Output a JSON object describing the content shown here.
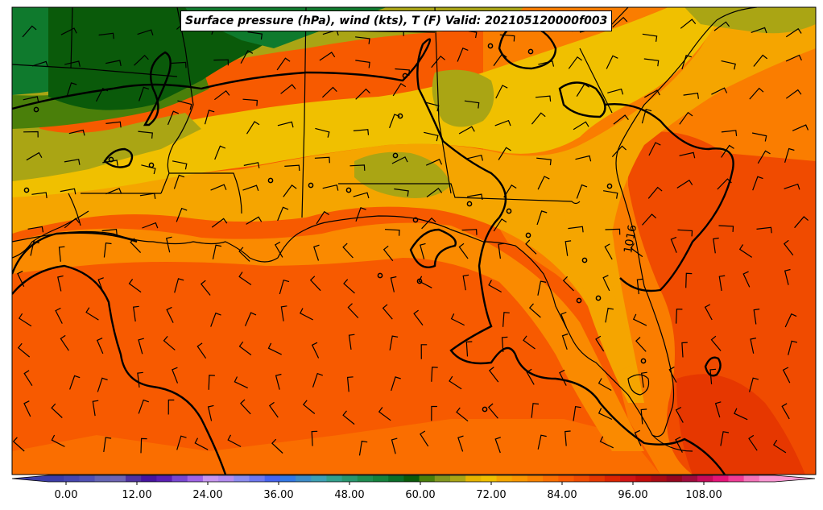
{
  "title": "Surface pressure (hPa), wind (kts), T (F) Valid: 202105120000f003",
  "isobar_label": "1016",
  "colorbar": {
    "tick_labels": [
      "0.00",
      "12.00",
      "24.00",
      "36.00",
      "48.00",
      "60.00",
      "72.00",
      "84.00",
      "96.00",
      "108.00"
    ],
    "tick_values": [
      0,
      12,
      24,
      36,
      48,
      60,
      72,
      84,
      96,
      108
    ],
    "range": [
      -3,
      120
    ],
    "colors": [
      "#3c3ca8",
      "#4646b0",
      "#5050b4",
      "#6464b4",
      "#6e64b4",
      "#5032a0",
      "#4614a0",
      "#5a1eb4",
      "#7846d2",
      "#a064e6",
      "#c896f0",
      "#b48cf0",
      "#8c8cf0",
      "#6e78f0",
      "#4664f0",
      "#3278e6",
      "#3c8cc8",
      "#3ca0b4",
      "#32a08c",
      "#28966e",
      "#1e8c50",
      "#14823c",
      "#0a6e28",
      "#0a5a0a",
      "#4a7f0a",
      "#82961e",
      "#aaa514",
      "#e6b400",
      "#f0c000",
      "#f5a500",
      "#fa9600",
      "#fa8200",
      "#fa6e00",
      "#fa5a00",
      "#f04b00",
      "#e63700",
      "#dc2300",
      "#d21414",
      "#c30a0a",
      "#aa0a14",
      "#96051e",
      "#a00a3c",
      "#c80a5a",
      "#e61478",
      "#f03c96",
      "#f573b9",
      "#fa96d2"
    ]
  },
  "legend_colors": {
    "land_dark_green": "#0a5a14",
    "land_green": "#0f7a2d",
    "land_olive": "#6f8f10",
    "land_yellow_olive": "#a9a510",
    "yellow": "#f0c000",
    "orange_light": "#f5a500",
    "orange": "#fa7d00",
    "gulf": "#f75a00",
    "red_orange": "#e63c00"
  }
}
